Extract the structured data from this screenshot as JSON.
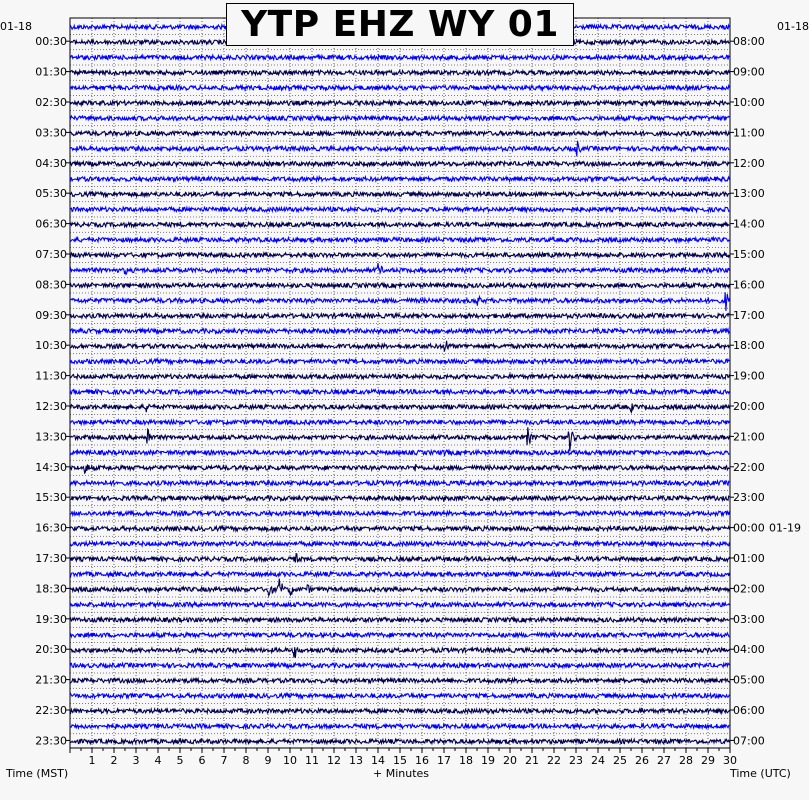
{
  "chart_data": {
    "type": "line",
    "title": "YTP EHZ WY 01",
    "xlabel": "+ Minutes",
    "ylabel_left": "Time (MST)",
    "ylabel_right": "Time (UTC)",
    "x_range": [
      0,
      30
    ],
    "x_ticks": [
      1,
      2,
      3,
      4,
      5,
      6,
      7,
      8,
      9,
      10,
      11,
      12,
      13,
      14,
      15,
      16,
      17,
      18,
      19,
      20,
      21,
      22,
      23,
      24,
      25,
      26,
      27,
      28,
      29,
      30
    ],
    "left_date": "01-18",
    "right_date_start": "01-18",
    "right_date_change": "01-19",
    "left_tick_labels": [
      "00:30",
      "01:30",
      "02:30",
      "03:30",
      "04:30",
      "05:30",
      "06:30",
      "07:30",
      "08:30",
      "09:30",
      "10:30",
      "11:30",
      "12:30",
      "13:30",
      "14:30",
      "15:30",
      "16:30",
      "17:30",
      "18:30",
      "19:30",
      "20:30",
      "21:30",
      "22:30",
      "23:30"
    ],
    "right_tick_labels": [
      "08:00",
      "09:00",
      "10:00",
      "11:00",
      "12:00",
      "13:00",
      "14:00",
      "15:00",
      "16:00",
      "17:00",
      "18:00",
      "19:00",
      "20:00",
      "21:00",
      "22:00",
      "23:00",
      "00:00",
      "01:00",
      "02:00",
      "03:00",
      "04:00",
      "05:00",
      "06:00",
      "07:00"
    ],
    "trace_count": 48,
    "trace_colors": [
      "#0000ff",
      "#00004f",
      "#0000ff",
      "#00004f"
    ],
    "grid": "dotted",
    "events": [
      {
        "trace": 8,
        "minute": 23.0,
        "amplitude": 12
      },
      {
        "trace": 8,
        "minute": 10.5,
        "amplitude": 3
      },
      {
        "trace": 16,
        "minute": 2.5,
        "amplitude": 6
      },
      {
        "trace": 16,
        "minute": 11.0,
        "amplitude": 5
      },
      {
        "trace": 16,
        "minute": 14.0,
        "amplitude": 10
      },
      {
        "trace": 18,
        "minute": 18.5,
        "amplitude": 8
      },
      {
        "trace": 18,
        "minute": 29.8,
        "amplitude": 12
      },
      {
        "trace": 21,
        "minute": 17.0,
        "amplitude": 12
      },
      {
        "trace": 25,
        "minute": 3.5,
        "amplitude": 9
      },
      {
        "trace": 25,
        "minute": 25.5,
        "amplitude": 6
      },
      {
        "trace": 27,
        "minute": 3.5,
        "amplitude": 14
      },
      {
        "trace": 27,
        "minute": 20.8,
        "amplitude": 12
      },
      {
        "trace": 27,
        "minute": 22.7,
        "amplitude": 16
      },
      {
        "trace": 28,
        "minute": 17.0,
        "amplitude": 5
      },
      {
        "trace": 29,
        "minute": 0.7,
        "amplitude": 9
      },
      {
        "trace": 29,
        "minute": 15.7,
        "amplitude": 5
      },
      {
        "trace": 30,
        "minute": 23.0,
        "amplitude": 5
      },
      {
        "trace": 31,
        "minute": 17.0,
        "amplitude": 4
      },
      {
        "trace": 35,
        "minute": 10.2,
        "amplitude": 10
      },
      {
        "trace": 37,
        "minute": 9.0,
        "amplitude": 12
      },
      {
        "trace": 37,
        "minute": 9.5,
        "amplitude": 14
      },
      {
        "trace": 37,
        "minute": 10.0,
        "amplitude": 9
      },
      {
        "trace": 37,
        "minute": 10.8,
        "amplitude": 6
      },
      {
        "trace": 41,
        "minute": 10.2,
        "amplitude": 10
      }
    ]
  }
}
